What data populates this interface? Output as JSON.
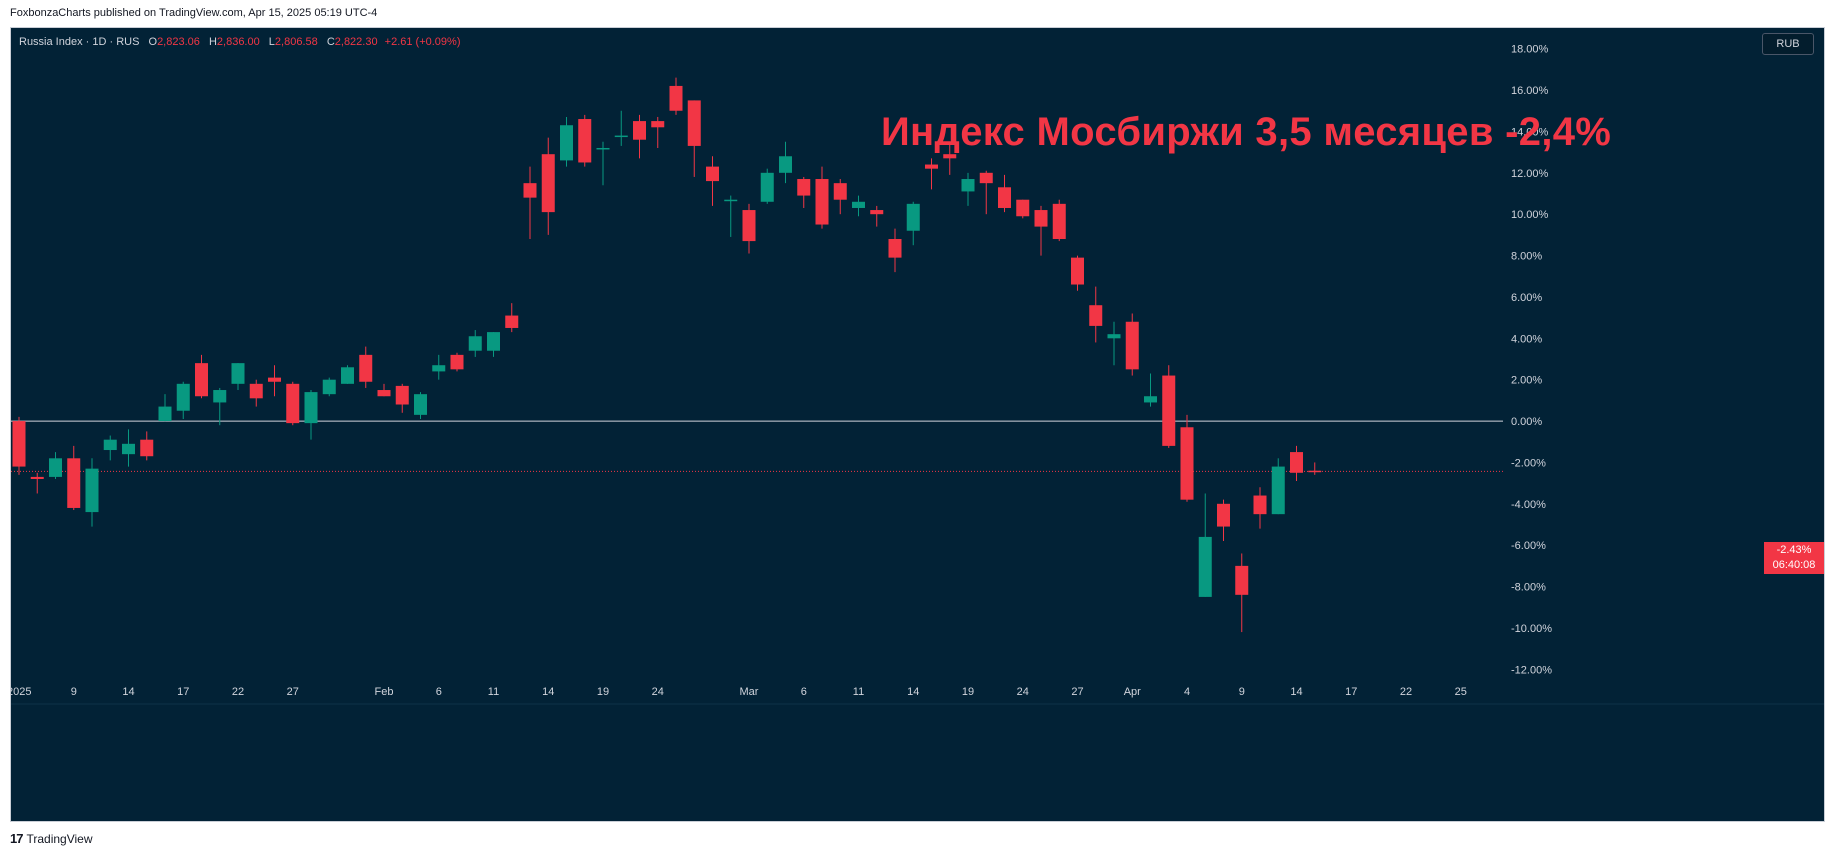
{
  "publisher_line": "FoxbonzaCharts published on TradingView.com, Apr 15, 2025 05:19 UTC-4",
  "legend": {
    "symbol": "Russia Index · 1D · RUS",
    "open_label": "O",
    "open": "2,823.06",
    "high_label": "H",
    "high": "2,836.00",
    "low_label": "L",
    "low": "2,806.58",
    "close_label": "C",
    "close": "2,822.30",
    "change": "+2.61 (+0.09%)"
  },
  "currency_button": "RUB",
  "annotation": "Индекс Мосбиржи 3,5 месяцев -2,4%",
  "price_label": {
    "value": "-2.43%",
    "countdown": "06:40:08"
  },
  "footer": {
    "logo": "17",
    "brand": "TradingView"
  },
  "colors": {
    "up": "#089981",
    "down": "#f23645",
    "background": "#022236",
    "axis_text": "#d1d4dc"
  },
  "chart_data": {
    "type": "candlestick",
    "y_unit": "percent",
    "ylim": [
      -13,
      19
    ],
    "y_ticks": [
      "18.00%",
      "16.00%",
      "14.00%",
      "12.00%",
      "10.00%",
      "8.00%",
      "6.00%",
      "4.00%",
      "2.00%",
      "0.00%",
      "-2.00%",
      "-4.00%",
      "-6.00%",
      "-8.00%",
      "-10.00%",
      "-12.00%"
    ],
    "y_tick_values": [
      18,
      16,
      14,
      12,
      10,
      8,
      6,
      4,
      2,
      0,
      -2,
      -4,
      -6,
      -8,
      -10,
      -12
    ],
    "x_ticks": [
      {
        "label": "2025",
        "slot": 0
      },
      {
        "label": "9",
        "slot": 3
      },
      {
        "label": "14",
        "slot": 6
      },
      {
        "label": "17",
        "slot": 9
      },
      {
        "label": "22",
        "slot": 12
      },
      {
        "label": "27",
        "slot": 15
      },
      {
        "label": "Feb",
        "slot": 20
      },
      {
        "label": "6",
        "slot": 23
      },
      {
        "label": "11",
        "slot": 26
      },
      {
        "label": "14",
        "slot": 29
      },
      {
        "label": "19",
        "slot": 32
      },
      {
        "label": "24",
        "slot": 35
      },
      {
        "label": "Mar",
        "slot": 40
      },
      {
        "label": "6",
        "slot": 43
      },
      {
        "label": "11",
        "slot": 46
      },
      {
        "label": "14",
        "slot": 49
      },
      {
        "label": "19",
        "slot": 52
      },
      {
        "label": "24",
        "slot": 55
      },
      {
        "label": "27",
        "slot": 58
      },
      {
        "label": "Apr",
        "slot": 61
      },
      {
        "label": "4",
        "slot": 64
      },
      {
        "label": "9",
        "slot": 67
      },
      {
        "label": "14",
        "slot": 70
      },
      {
        "label": "17",
        "slot": 73
      },
      {
        "label": "22",
        "slot": 76
      },
      {
        "label": "25",
        "slot": 79
      }
    ],
    "zero_line": 0,
    "last_value": -2.43,
    "candles": [
      {
        "o": 0.0,
        "h": 0.2,
        "l": -2.6,
        "c": -2.2
      },
      {
        "o": -2.7,
        "h": -2.5,
        "l": -3.5,
        "c": -2.8
      },
      {
        "o": -2.7,
        "h": -1.5,
        "l": -2.8,
        "c": -1.8
      },
      {
        "o": -1.8,
        "h": -1.2,
        "l": -4.3,
        "c": -4.2
      },
      {
        "o": -4.4,
        "h": -1.8,
        "l": -5.1,
        "c": -2.3
      },
      {
        "o": -1.4,
        "h": -0.7,
        "l": -1.9,
        "c": -0.9
      },
      {
        "o": -1.6,
        "h": -0.4,
        "l": -2.2,
        "c": -1.1
      },
      {
        "o": -0.9,
        "h": -0.5,
        "l": -1.9,
        "c": -1.7
      },
      {
        "o": 0.0,
        "h": 1.3,
        "l": 0.0,
        "c": 0.7
      },
      {
        "o": 0.5,
        "h": 1.9,
        "l": 0.1,
        "c": 1.8
      },
      {
        "o": 2.8,
        "h": 3.2,
        "l": 1.1,
        "c": 1.2
      },
      {
        "o": 0.9,
        "h": 1.6,
        "l": -0.2,
        "c": 1.5
      },
      {
        "o": 1.8,
        "h": 2.8,
        "l": 1.5,
        "c": 2.8
      },
      {
        "o": 1.8,
        "h": 2.0,
        "l": 0.7,
        "c": 1.1
      },
      {
        "o": 2.1,
        "h": 2.7,
        "l": 1.2,
        "c": 1.9
      },
      {
        "o": 1.8,
        "h": 1.9,
        "l": -0.2,
        "c": -0.1
      },
      {
        "o": -0.1,
        "h": 1.5,
        "l": -0.9,
        "c": 1.4
      },
      {
        "o": 1.3,
        "h": 2.1,
        "l": 1.2,
        "c": 2.0
      },
      {
        "o": 1.8,
        "h": 2.7,
        "l": 1.8,
        "c": 2.6
      },
      {
        "o": 3.2,
        "h": 3.6,
        "l": 1.6,
        "c": 1.9
      },
      {
        "o": 1.5,
        "h": 1.8,
        "l": 1.2,
        "c": 1.2
      },
      {
        "o": 1.7,
        "h": 1.8,
        "l": 0.4,
        "c": 0.8
      },
      {
        "o": 0.3,
        "h": 1.4,
        "l": 0.1,
        "c": 1.3
      },
      {
        "o": 2.4,
        "h": 3.2,
        "l": 2.0,
        "c": 2.7
      },
      {
        "o": 3.2,
        "h": 3.3,
        "l": 2.4,
        "c": 2.5
      },
      {
        "o": 3.4,
        "h": 4.4,
        "l": 3.1,
        "c": 4.1
      },
      {
        "o": 3.4,
        "h": 4.3,
        "l": 3.1,
        "c": 4.3
      },
      {
        "o": 5.1,
        "h": 5.7,
        "l": 4.3,
        "c": 4.5
      },
      {
        "o": 11.5,
        "h": 12.3,
        "l": 8.8,
        "c": 10.8
      },
      {
        "o": 12.9,
        "h": 13.7,
        "l": 9.0,
        "c": 10.1
      },
      {
        "o": 12.6,
        "h": 14.7,
        "l": 12.3,
        "c": 14.3
      },
      {
        "o": 14.6,
        "h": 14.8,
        "l": 12.3,
        "c": 12.5
      },
      {
        "o": 13.2,
        "h": 13.5,
        "l": 11.4,
        "c": 13.2
      },
      {
        "o": 13.8,
        "h": 15.0,
        "l": 13.3,
        "c": 13.8
      },
      {
        "o": 14.5,
        "h": 14.8,
        "l": 12.7,
        "c": 13.6
      },
      {
        "o": 14.5,
        "h": 14.7,
        "l": 13.2,
        "c": 14.2
      },
      {
        "o": 16.2,
        "h": 16.6,
        "l": 14.8,
        "c": 15.0
      },
      {
        "o": 15.5,
        "h": 15.5,
        "l": 11.8,
        "c": 13.3
      },
      {
        "o": 12.3,
        "h": 12.8,
        "l": 10.4,
        "c": 11.6
      },
      {
        "o": 10.7,
        "h": 10.9,
        "l": 8.9,
        "c": 10.7
      },
      {
        "o": 10.2,
        "h": 10.5,
        "l": 8.1,
        "c": 8.7
      },
      {
        "o": 10.6,
        "h": 12.2,
        "l": 10.5,
        "c": 12.0
      },
      {
        "o": 12.0,
        "h": 13.5,
        "l": 11.5,
        "c": 12.8
      },
      {
        "o": 11.7,
        "h": 11.8,
        "l": 10.3,
        "c": 10.9
      },
      {
        "o": 11.7,
        "h": 12.3,
        "l": 9.3,
        "c": 9.5
      },
      {
        "o": 11.5,
        "h": 11.7,
        "l": 10.0,
        "c": 10.7
      },
      {
        "o": 10.3,
        "h": 10.9,
        "l": 9.9,
        "c": 10.6
      },
      {
        "o": 10.2,
        "h": 10.4,
        "l": 9.4,
        "c": 10.0
      },
      {
        "o": 8.8,
        "h": 9.3,
        "l": 7.2,
        "c": 7.9
      },
      {
        "o": 9.2,
        "h": 10.6,
        "l": 8.5,
        "c": 10.5
      },
      {
        "o": 12.4,
        "h": 12.7,
        "l": 11.2,
        "c": 12.2
      },
      {
        "o": 12.9,
        "h": 13.4,
        "l": 11.9,
        "c": 12.7
      },
      {
        "o": 11.1,
        "h": 12.0,
        "l": 10.4,
        "c": 11.7
      },
      {
        "o": 12.0,
        "h": 12.1,
        "l": 10.0,
        "c": 11.5
      },
      {
        "o": 11.3,
        "h": 11.9,
        "l": 10.1,
        "c": 10.3
      },
      {
        "o": 10.7,
        "h": 10.7,
        "l": 9.8,
        "c": 9.9
      },
      {
        "o": 10.2,
        "h": 10.4,
        "l": 8.0,
        "c": 9.4
      },
      {
        "o": 10.5,
        "h": 10.7,
        "l": 8.7,
        "c": 8.8
      },
      {
        "o": 7.9,
        "h": 8.0,
        "l": 6.3,
        "c": 6.6
      },
      {
        "o": 5.6,
        "h": 6.5,
        "l": 3.8,
        "c": 4.6
      },
      {
        "o": 4.0,
        "h": 4.8,
        "l": 2.7,
        "c": 4.2
      },
      {
        "o": 4.8,
        "h": 5.2,
        "l": 2.2,
        "c": 2.5
      },
      {
        "o": 0.9,
        "h": 2.3,
        "l": 0.7,
        "c": 1.2
      },
      {
        "o": 2.2,
        "h": 2.7,
        "l": -1.3,
        "c": -1.2
      },
      {
        "o": -0.3,
        "h": 0.3,
        "l": -3.9,
        "c": -3.8
      },
      {
        "o": -8.5,
        "h": -3.5,
        "l": -8.5,
        "c": -5.6
      },
      {
        "o": -4.0,
        "h": -3.8,
        "l": -5.8,
        "c": -5.1
      },
      {
        "o": -7.0,
        "h": -6.4,
        "l": -10.2,
        "c": -8.4
      },
      {
        "o": -3.6,
        "h": -3.2,
        "l": -5.2,
        "c": -4.5
      },
      {
        "o": -4.5,
        "h": -1.8,
        "l": -4.5,
        "c": -2.2
      },
      {
        "o": -1.5,
        "h": -1.2,
        "l": -2.9,
        "c": -2.5
      },
      {
        "o": -2.4,
        "h": -2.0,
        "l": -2.6,
        "c": -2.43
      }
    ]
  }
}
